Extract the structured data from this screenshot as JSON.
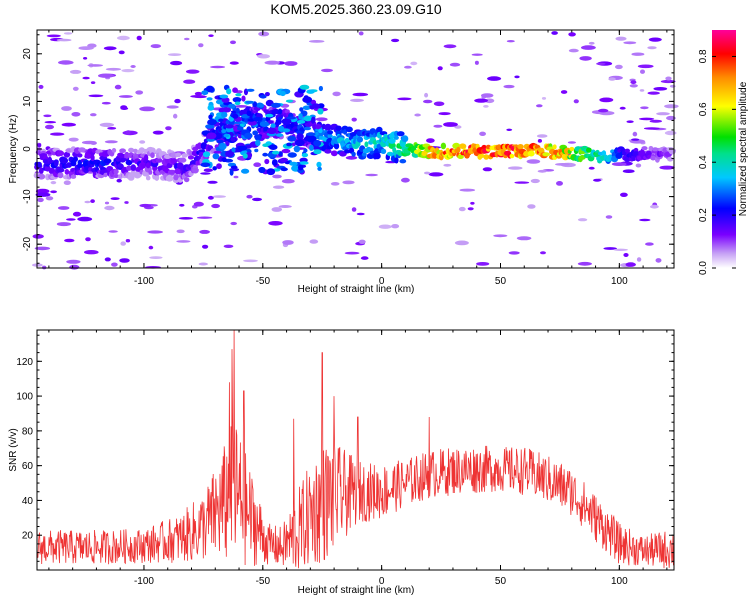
{
  "title": "KOM5.2025.360.23.09.G10",
  "chart_data": [
    {
      "type": "heatmap",
      "xlabel": "Height of straight line (km)",
      "ylabel": "Frequency (Hz)",
      "xlim": [
        -145,
        123
      ],
      "ylim": [
        -25,
        25
      ],
      "xticks": [
        -100,
        -50,
        0,
        50,
        100
      ],
      "yticks": [
        -20,
        -10,
        0,
        10,
        20
      ],
      "xtick_labels": [
        "-100",
        "-50",
        "0",
        "50",
        "100"
      ],
      "ytick_labels": [
        "-20",
        "-10",
        "0",
        "10",
        "20"
      ],
      "colorbar": {
        "label": "Normalized spectral amplitude",
        "range": [
          0,
          0.9
        ],
        "ticks": [
          0.0,
          0.2,
          0.4,
          0.6,
          0.8
        ],
        "tick_labels": [
          "0.0",
          "0.2",
          "0.4",
          "0.6",
          "0.8"
        ]
      },
      "ridge": [
        {
          "x": -145,
          "y": -3,
          "a": 0.22
        },
        {
          "x": -120,
          "y": -3,
          "a": 0.25
        },
        {
          "x": -100,
          "y": -3,
          "a": 0.18
        },
        {
          "x": -82,
          "y": -4,
          "a": 0.2
        },
        {
          "x": -72,
          "y": 2,
          "a": 0.25
        },
        {
          "x": -62,
          "y": 5,
          "a": 0.35
        },
        {
          "x": -50,
          "y": 6,
          "a": 0.3
        },
        {
          "x": -38,
          "y": 5,
          "a": 0.25
        },
        {
          "x": -28,
          "y": 3,
          "a": 0.32
        },
        {
          "x": -20,
          "y": 2,
          "a": 0.35
        },
        {
          "x": -10,
          "y": 1,
          "a": 0.4
        },
        {
          "x": 0,
          "y": 1.5,
          "a": 0.42
        },
        {
          "x": 10,
          "y": 0,
          "a": 0.5
        },
        {
          "x": 20,
          "y": -0.5,
          "a": 0.75
        },
        {
          "x": 40,
          "y": -0.5,
          "a": 0.85
        },
        {
          "x": 60,
          "y": -0.5,
          "a": 0.85
        },
        {
          "x": 75,
          "y": -0.6,
          "a": 0.75
        },
        {
          "x": 85,
          "y": -1,
          "a": 0.55
        },
        {
          "x": 95,
          "y": -1.5,
          "a": 0.4
        },
        {
          "x": 102,
          "y": -1,
          "a": 0.22
        },
        {
          "x": 123,
          "y": -1,
          "a": 0.1
        }
      ]
    },
    {
      "type": "line",
      "series": [
        {
          "name": "SNR",
          "color": "#ee3333"
        }
      ],
      "xlabel": "Height of straight line (km)",
      "ylabel": "SNR (v/v)",
      "xlim": [
        -145,
        123
      ],
      "ylim": [
        0,
        138
      ],
      "xticks": [
        -100,
        -50,
        0,
        50,
        100
      ],
      "yticks": [
        20,
        40,
        60,
        80,
        100,
        120
      ],
      "xtick_labels": [
        "-100",
        "-50",
        "0",
        "50",
        "100"
      ],
      "ytick_labels": [
        "20",
        "40",
        "60",
        "80",
        "100",
        "120"
      ],
      "envelope": {
        "x": [
          -145,
          -120,
          -100,
          -85,
          -75,
          -68,
          -62,
          -55,
          -48,
          -42,
          -35,
          -30,
          -25,
          -20,
          -10,
          0,
          10,
          20,
          30,
          40,
          50,
          60,
          70,
          80,
          90,
          100,
          110,
          123
        ],
        "mean": [
          13,
          13,
          14,
          18,
          25,
          35,
          45,
          30,
          15,
          13,
          22,
          32,
          38,
          42,
          45,
          45,
          50,
          55,
          57,
          58,
          58,
          57,
          52,
          45,
          30,
          15,
          11,
          12
        ],
        "spread": [
          10,
          10,
          10,
          14,
          20,
          30,
          45,
          28,
          12,
          12,
          25,
          30,
          35,
          32,
          18,
          16,
          14,
          14,
          14,
          14,
          13,
          14,
          14,
          14,
          14,
          12,
          9,
          12
        ]
      },
      "peaks": [
        {
          "x": -62,
          "y": 138
        },
        {
          "x": -63,
          "y": 127
        },
        {
          "x": -64,
          "y": 108
        },
        {
          "x": -58,
          "y": 103
        },
        {
          "x": -25,
          "y": 125
        },
        {
          "x": -20,
          "y": 100
        },
        {
          "x": -37,
          "y": 87
        },
        {
          "x": -10,
          "y": 88
        },
        {
          "x": 20,
          "y": 88
        }
      ]
    }
  ],
  "colors": {
    "snr_line": "#ee3333",
    "axis": "#000000"
  }
}
